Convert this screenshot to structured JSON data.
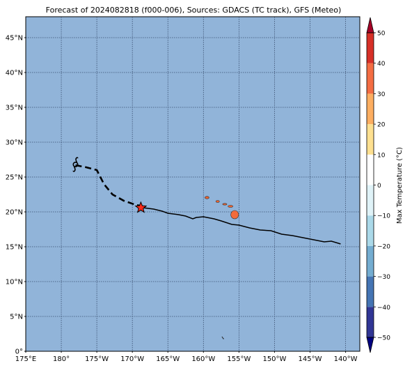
{
  "title": "Forecast of 2024082818 (f000-006), Sources: GDACS (TC track), GFS (Meteo)",
  "map": {
    "lon_range": [
      175,
      222
    ],
    "lat_range": [
      0,
      48
    ],
    "ocean_color": "#91b4d9",
    "grid": true,
    "lat_ticks": [
      {
        "value": 0,
        "label": "0°"
      },
      {
        "value": 5,
        "label": "5°N"
      },
      {
        "value": 10,
        "label": "10°N"
      },
      {
        "value": 15,
        "label": "15°N"
      },
      {
        "value": 20,
        "label": "20°N"
      },
      {
        "value": 25,
        "label": "25°N"
      },
      {
        "value": 30,
        "label": "30°N"
      },
      {
        "value": 35,
        "label": "35°N"
      },
      {
        "value": 40,
        "label": "40°N"
      },
      {
        "value": 45,
        "label": "45°N"
      }
    ],
    "lon_ticks": [
      {
        "value": 175,
        "label": "175°E"
      },
      {
        "value": 180,
        "label": "180°"
      },
      {
        "value": 185,
        "label": "175°W"
      },
      {
        "value": 190,
        "label": "170°W"
      },
      {
        "value": 195,
        "label": "165°W"
      },
      {
        "value": 200,
        "label": "160°W"
      },
      {
        "value": 205,
        "label": "155°W"
      },
      {
        "value": 210,
        "label": "150°W"
      },
      {
        "value": 215,
        "label": "145°W"
      },
      {
        "value": 220,
        "label": "140°W"
      }
    ],
    "past_track": [
      [
        182.0,
        26.7
      ],
      [
        183.5,
        26.4
      ],
      [
        185.0,
        26.0
      ],
      [
        186.0,
        24.0
      ],
      [
        187.2,
        22.5
      ],
      [
        188.8,
        21.6
      ],
      [
        190.5,
        21.0
      ],
      [
        191.5,
        20.8
      ]
    ],
    "forecast_track": [
      [
        191.5,
        20.6
      ],
      [
        193.0,
        20.4
      ],
      [
        194.2,
        20.1
      ],
      [
        195.0,
        19.8
      ],
      [
        196.5,
        19.6
      ],
      [
        197.5,
        19.4
      ],
      [
        198.5,
        19.0
      ],
      [
        199.0,
        19.2
      ],
      [
        200.0,
        19.3
      ],
      [
        201.5,
        19.0
      ],
      [
        202.5,
        18.7
      ],
      [
        204.0,
        18.2
      ],
      [
        205.0,
        18.1
      ],
      [
        206.5,
        17.7
      ],
      [
        208.0,
        17.4
      ],
      [
        209.5,
        17.3
      ],
      [
        211.0,
        16.8
      ],
      [
        212.5,
        16.6
      ],
      [
        214.0,
        16.3
      ],
      [
        215.5,
        16.0
      ],
      [
        217.0,
        15.7
      ],
      [
        218.0,
        15.8
      ],
      [
        219.3,
        15.4
      ]
    ],
    "current_position": {
      "lon": 191.2,
      "lat": 20.6,
      "color": "#ff2a1a"
    },
    "storm_origin": {
      "lon": 182.0,
      "lat": 26.8
    },
    "islands": [
      {
        "name": "Kauai",
        "lon": 200.5,
        "lat": 22.05,
        "rx": 0.3,
        "ry": 0.18,
        "color": "#e8612f"
      },
      {
        "name": "Oahu",
        "lon": 202.0,
        "lat": 21.5,
        "rx": 0.25,
        "ry": 0.15,
        "color": "#e8612f"
      },
      {
        "name": "Molokai",
        "lon": 203.0,
        "lat": 21.1,
        "rx": 0.3,
        "ry": 0.08,
        "color": "#e8612f"
      },
      {
        "name": "Maui",
        "lon": 203.8,
        "lat": 20.8,
        "rx": 0.35,
        "ry": 0.15,
        "color": "#e8612f"
      },
      {
        "name": "Hawaii",
        "lon": 204.4,
        "lat": 19.6,
        "rx": 0.55,
        "ry": 0.6,
        "color": "#f26b3a"
      }
    ],
    "atoll": {
      "lon": 202.7,
      "lat": 1.9
    }
  },
  "colorbar": {
    "label": "Max Temperature (°C)",
    "vmin": -50,
    "vmax": 50,
    "ticks": [
      -50,
      -40,
      -30,
      -20,
      -10,
      0,
      10,
      20,
      30,
      40,
      50
    ],
    "bands": [
      {
        "from": -50,
        "to": -40,
        "color": "#313695"
      },
      {
        "from": -40,
        "to": -30,
        "color": "#4575b4"
      },
      {
        "from": -30,
        "to": -20,
        "color": "#74add1"
      },
      {
        "from": -20,
        "to": -10,
        "color": "#abd9e9"
      },
      {
        "from": -10,
        "to": 0,
        "color": "#e0f3f8"
      },
      {
        "from": 0,
        "to": 10,
        "color": "#ffffff"
      },
      {
        "from": 10,
        "to": 20,
        "color": "#fee090"
      },
      {
        "from": 20,
        "to": 30,
        "color": "#fdae61"
      },
      {
        "from": 30,
        "to": 40,
        "color": "#f46d43"
      },
      {
        "from": 40,
        "to": 50,
        "color": "#d73027"
      }
    ],
    "under_color": "#000080",
    "over_color": "#a50026"
  }
}
